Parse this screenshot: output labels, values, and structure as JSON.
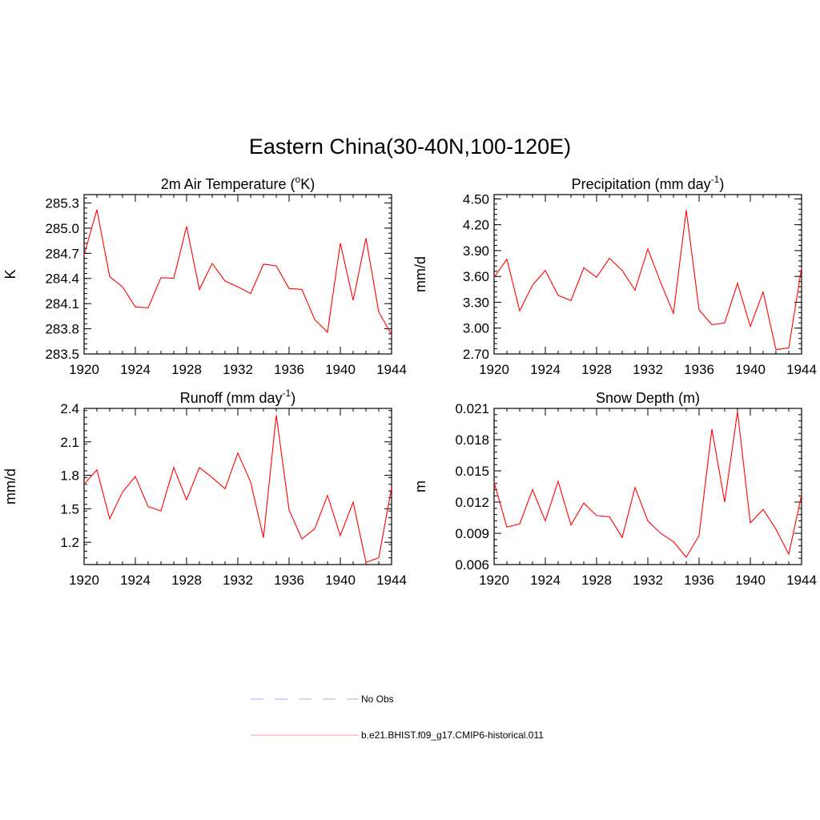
{
  "title": "Eastern China(30-40N,100-120E)",
  "chart_data": [
    {
      "type": "line",
      "title": "2m Air Temperature (",
      "title_sup": "o",
      "title_rest": "K)",
      "ylabel": "K",
      "xlim": [
        1920,
        1944
      ],
      "ylim": [
        283.5,
        285.4
      ],
      "yticks": [
        "283.5",
        "283.8",
        "284.1",
        "284.4",
        "284.7",
        "285.0",
        "285.3"
      ],
      "xticks": [
        "1920",
        "1924",
        "1928",
        "1932",
        "1936",
        "1940",
        "1944"
      ],
      "series": [
        {
          "color": "#ff0000",
          "x": [
            1920,
            1921,
            1922,
            1923,
            1924,
            1925,
            1926,
            1927,
            1928,
            1929,
            1930,
            1931,
            1932,
            1933,
            1934,
            1935,
            1936,
            1937,
            1938,
            1939,
            1940,
            1941,
            1942,
            1943,
            1944
          ],
          "values": [
            284.68,
            285.22,
            284.42,
            284.3,
            284.06,
            284.05,
            284.41,
            284.4,
            285.02,
            284.27,
            284.58,
            284.37,
            284.3,
            284.22,
            284.57,
            284.55,
            284.28,
            284.27,
            283.91,
            283.76,
            284.82,
            284.14,
            284.88,
            284.0,
            283.73
          ]
        }
      ]
    },
    {
      "type": "line",
      "title": "Precipitation (mm day",
      "title_sup": "-1",
      "title_rest": ")",
      "ylabel": "mm/d",
      "xlim": [
        1920,
        1944
      ],
      "ylim": [
        2.7,
        4.55
      ],
      "yticks": [
        "2.70",
        "3.00",
        "3.30",
        "3.60",
        "3.90",
        "4.20",
        "4.50"
      ],
      "xticks": [
        "1920",
        "1924",
        "1928",
        "1932",
        "1936",
        "1940",
        "1944"
      ],
      "series": [
        {
          "color": "#ff0000",
          "x": [
            1920,
            1921,
            1922,
            1923,
            1924,
            1925,
            1926,
            1927,
            1928,
            1929,
            1930,
            1931,
            1932,
            1933,
            1934,
            1935,
            1936,
            1937,
            1938,
            1939,
            1940,
            1941,
            1942,
            1943,
            1944
          ],
          "values": [
            3.59,
            3.8,
            3.2,
            3.5,
            3.67,
            3.38,
            3.32,
            3.7,
            3.59,
            3.81,
            3.67,
            3.44,
            3.92,
            3.53,
            3.17,
            4.37,
            3.21,
            3.04,
            3.06,
            3.52,
            3.02,
            3.42,
            2.75,
            2.77,
            3.7
          ]
        }
      ]
    },
    {
      "type": "line",
      "title": "Runoff (mm day",
      "title_sup": "-1",
      "title_rest": ")",
      "ylabel": "mm/d",
      "xlim": [
        1920,
        1944
      ],
      "ylim": [
        1.0,
        2.4
      ],
      "yticks": [
        "1.2",
        "1.5",
        "1.8",
        "2.1",
        "2.4"
      ],
      "xticks": [
        "1920",
        "1924",
        "1928",
        "1932",
        "1936",
        "1940",
        "1944"
      ],
      "series": [
        {
          "color": "#ff0000",
          "x": [
            1920,
            1921,
            1922,
            1923,
            1924,
            1925,
            1926,
            1927,
            1928,
            1929,
            1930,
            1931,
            1932,
            1933,
            1934,
            1935,
            1936,
            1937,
            1938,
            1939,
            1940,
            1941,
            1942,
            1943,
            1944
          ],
          "values": [
            1.72,
            1.85,
            1.41,
            1.65,
            1.79,
            1.52,
            1.48,
            1.87,
            1.58,
            1.87,
            1.78,
            1.68,
            2.0,
            1.74,
            1.24,
            2.34,
            1.49,
            1.23,
            1.32,
            1.62,
            1.26,
            1.56,
            1.02,
            1.06,
            1.69
          ]
        }
      ]
    },
    {
      "type": "line",
      "title": "Snow Depth (m)",
      "title_sup": "",
      "title_rest": "",
      "ylabel": "m",
      "xlim": [
        1920,
        1944
      ],
      "ylim": [
        0.006,
        0.021
      ],
      "yticks": [
        "0.006",
        "0.009",
        "0.012",
        "0.015",
        "0.018",
        "0.021"
      ],
      "xticks": [
        "1920",
        "1924",
        "1928",
        "1932",
        "1936",
        "1940",
        "1944"
      ],
      "series": [
        {
          "color": "#ff0000",
          "x": [
            1920,
            1921,
            1922,
            1923,
            1924,
            1925,
            1926,
            1927,
            1928,
            1929,
            1930,
            1931,
            1932,
            1933,
            1934,
            1935,
            1936,
            1937,
            1938,
            1939,
            1940,
            1941,
            1942,
            1943,
            1944
          ],
          "values": [
            0.0139,
            0.0096,
            0.0099,
            0.0132,
            0.0102,
            0.014,
            0.0098,
            0.0119,
            0.0107,
            0.0106,
            0.0086,
            0.0134,
            0.0102,
            0.009,
            0.0082,
            0.0067,
            0.0088,
            0.019,
            0.012,
            0.0207,
            0.01,
            0.0113,
            0.0094,
            0.007,
            0.0127
          ]
        }
      ]
    }
  ],
  "legend": [
    {
      "label": "No Obs",
      "color": "#aaaaff",
      "dash": true
    },
    {
      "label": "b.e21.BHIST.f09_g17.CMIP6-historical.011",
      "color": "#ff9999",
      "dash": false
    }
  ]
}
